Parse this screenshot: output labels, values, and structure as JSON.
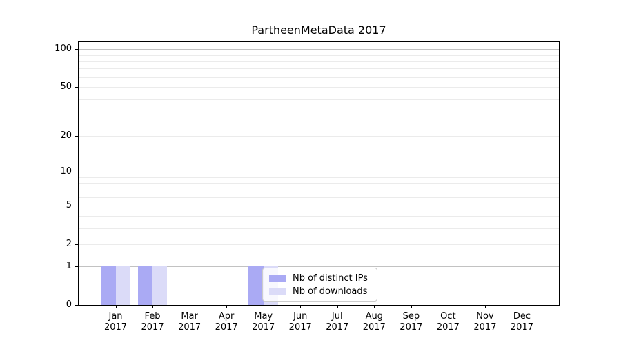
{
  "chart_data": {
    "type": "bar",
    "title": "PartheenMetaData 2017",
    "year_label": "2017",
    "categories": [
      "Jan",
      "Feb",
      "Mar",
      "Apr",
      "May",
      "Jun",
      "Jul",
      "Aug",
      "Sep",
      "Oct",
      "Nov",
      "Dec"
    ],
    "series": [
      {
        "name": "Nb of distinct IPs",
        "color": "#aaaaf4",
        "values": [
          1,
          1,
          0,
          0,
          1,
          0,
          0,
          0,
          0,
          0,
          0,
          0
        ]
      },
      {
        "name": "Nb of downloads",
        "color": "#dbdbf8",
        "values": [
          1,
          1,
          0,
          0,
          1,
          0,
          0,
          0,
          0,
          0,
          0,
          0
        ]
      }
    ],
    "yscale": "log1p",
    "ylim": [
      0,
      113.6
    ],
    "xlim": [
      -1,
      12
    ],
    "bar_width_units": 0.4,
    "y_tick_values": [
      0,
      1,
      2,
      5,
      10,
      20,
      50,
      100
    ],
    "y_tick_labels": [
      "0",
      "1",
      "2",
      "5",
      "10",
      "20",
      "50",
      "100"
    ],
    "y_major_gridlines": [
      1,
      10,
      100
    ],
    "y_minor_gridlines": [
      2,
      3,
      4,
      5,
      6,
      7,
      8,
      9,
      20,
      30,
      40,
      50,
      60,
      70,
      80,
      90
    ],
    "grid": true,
    "legend": {
      "position": "lower-center"
    },
    "colors": {
      "major_grid": "#c2c2c2",
      "minor_grid": "#ebebeb",
      "spine": "#000000",
      "background": "#ffffff"
    }
  }
}
